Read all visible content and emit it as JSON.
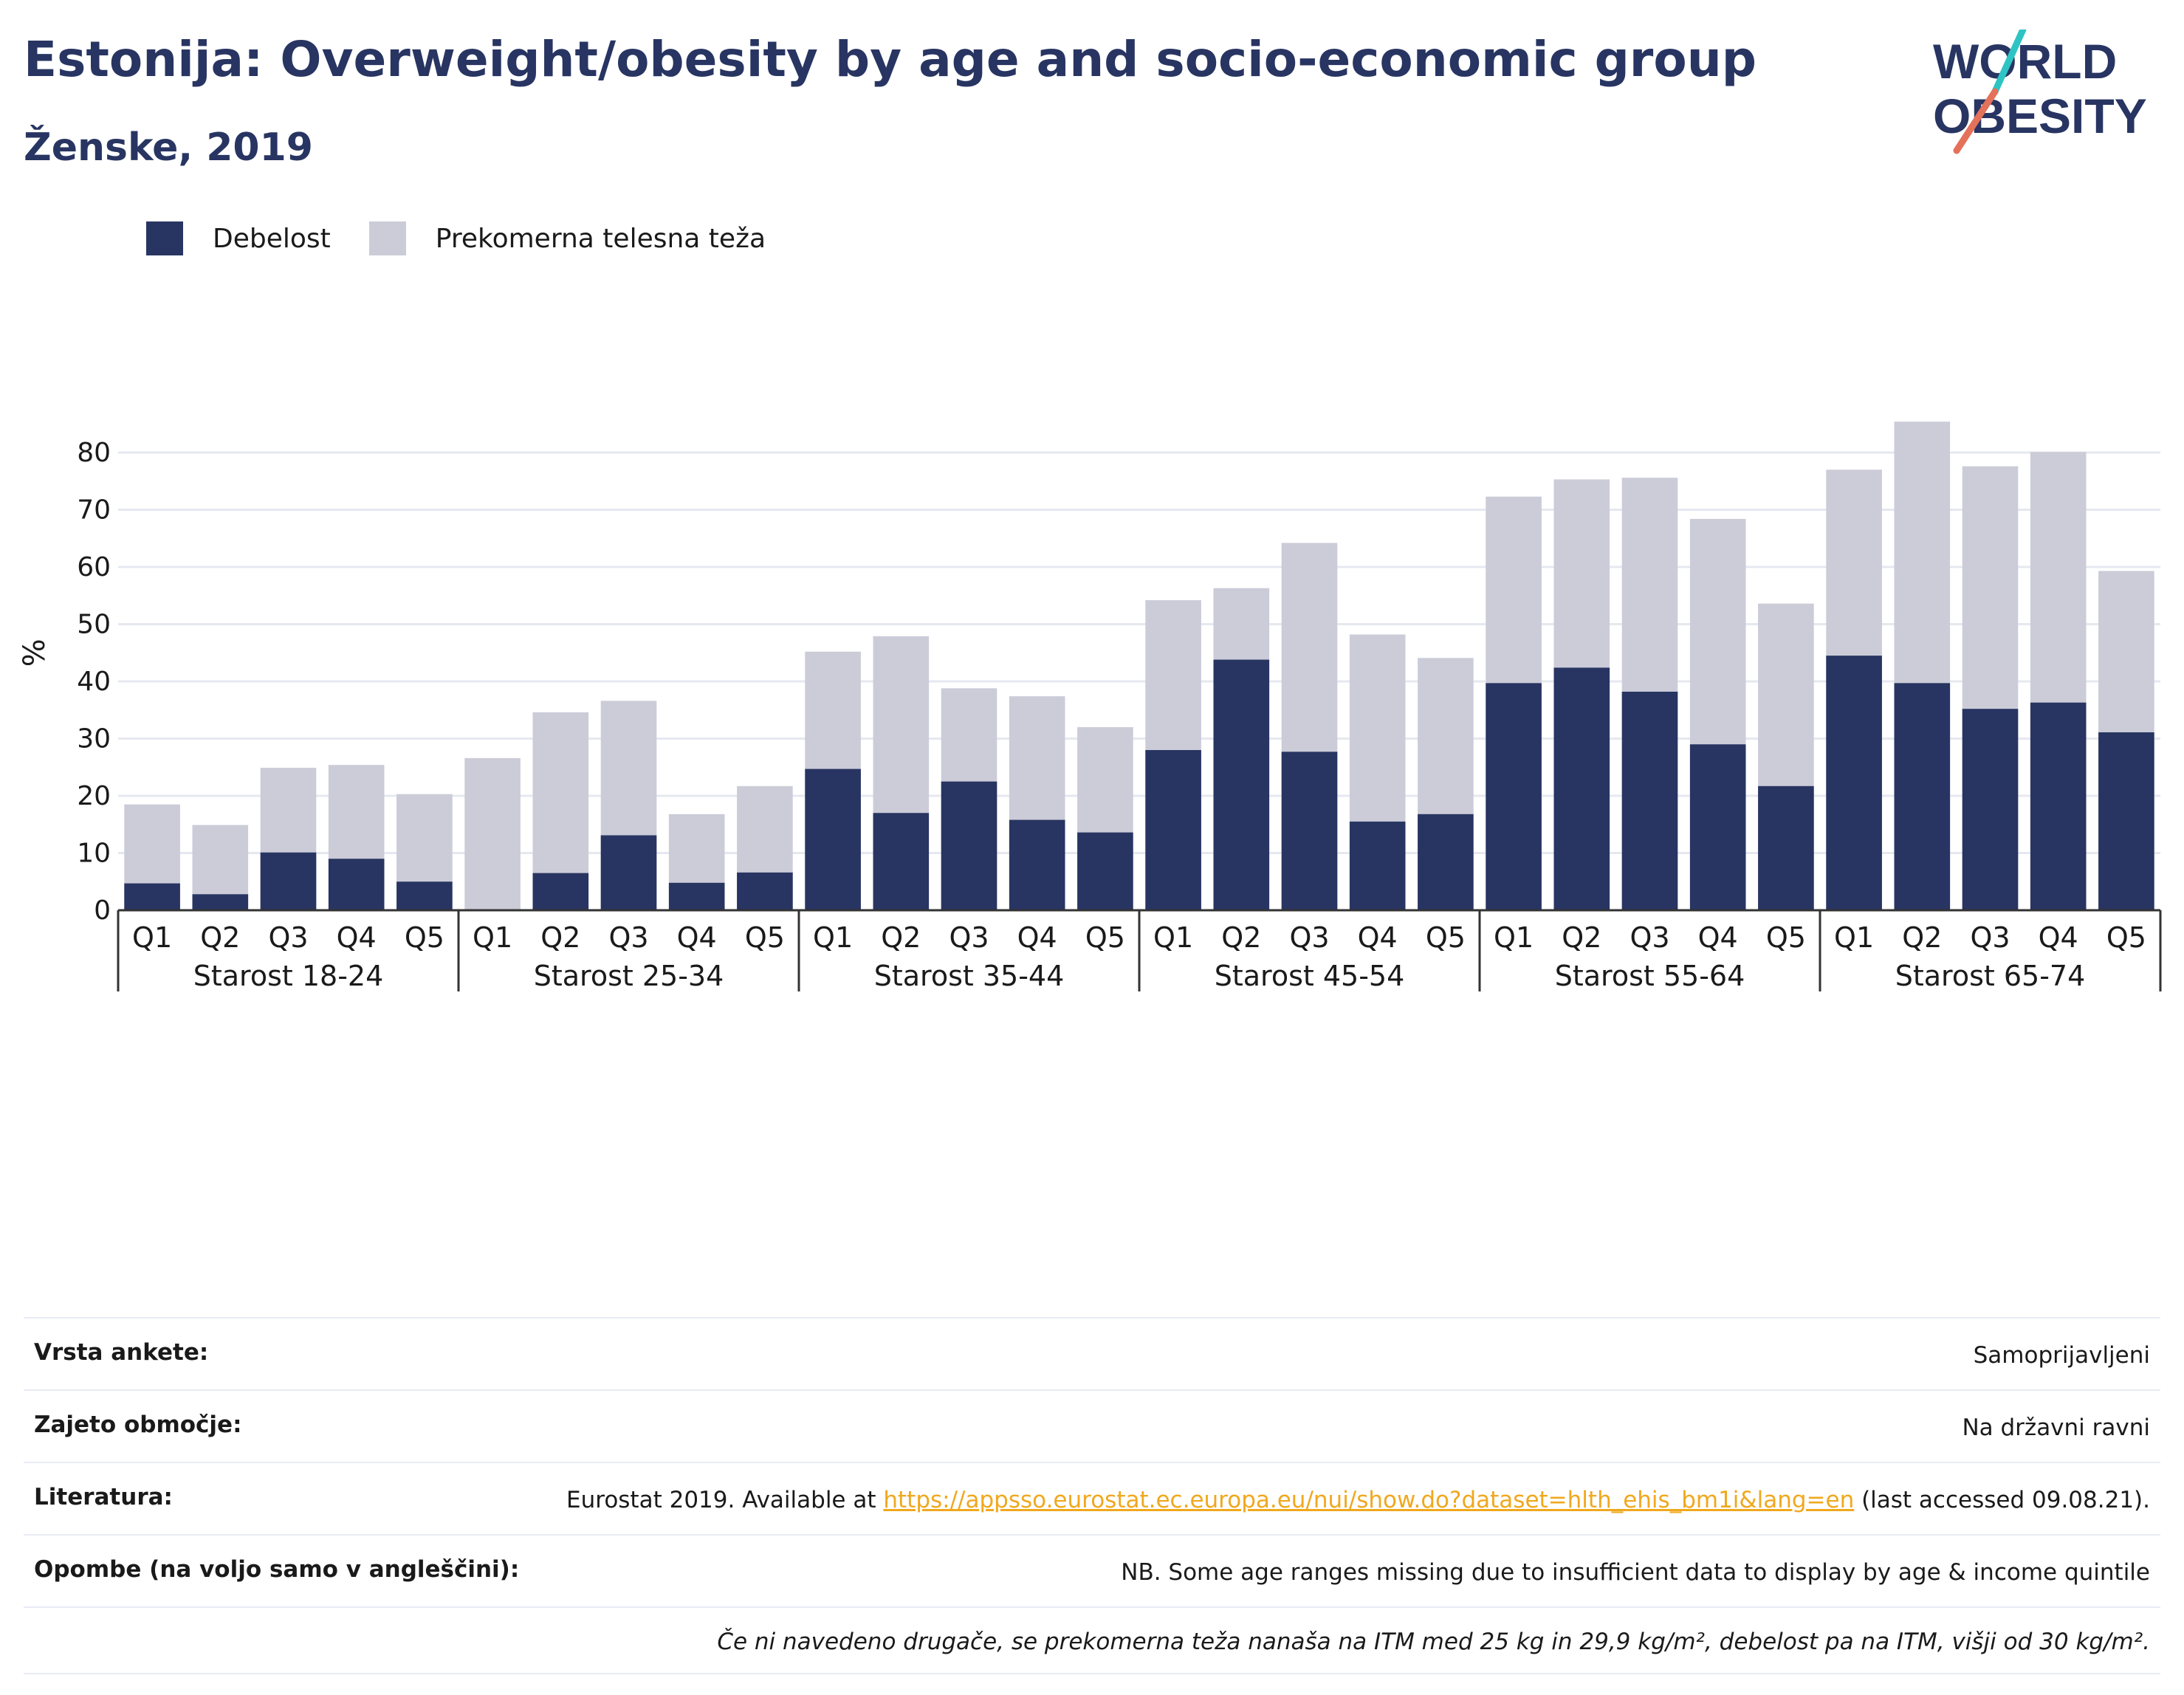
{
  "header": {
    "title": "Estonija: Overweight/obesity by age and socio-economic group",
    "subtitle": "Ženske, 2019"
  },
  "logo": {
    "line1": "WORLD",
    "line2": "OBESITY"
  },
  "colors": {
    "obesity": "#283562",
    "overweight": "#cbccd8",
    "grid": "#e6e8f0",
    "axis": "#333333",
    "accent_teal": "#2ec4c4",
    "accent_coral": "#e4715a"
  },
  "chart_data": {
    "type": "bar",
    "stacked": true,
    "ylabel": "%",
    "ylim": [
      0,
      90
    ],
    "yticks": [
      0,
      10,
      20,
      30,
      40,
      50,
      60,
      70,
      80
    ],
    "grid": true,
    "legend_position": "top-left",
    "series": [
      {
        "name": "Debelost",
        "color": "#283562"
      },
      {
        "name": "Prekomerna telesna teža",
        "color": "#cbccd8"
      }
    ],
    "groups": [
      {
        "label": "Starost 18-24",
        "bars": [
          {
            "q": "Q1",
            "obesity": 4.7,
            "total": 18.5
          },
          {
            "q": "Q2",
            "obesity": 2.8,
            "total": 14.9
          },
          {
            "q": "Q3",
            "obesity": 10.1,
            "total": 24.9
          },
          {
            "q": "Q4",
            "obesity": 9.0,
            "total": 25.4
          },
          {
            "q": "Q5",
            "obesity": 5.0,
            "total": 20.3
          }
        ]
      },
      {
        "label": "Starost 25-34",
        "bars": [
          {
            "q": "Q1",
            "obesity": 0,
            "total": 26.6
          },
          {
            "q": "Q2",
            "obesity": 6.5,
            "total": 34.6
          },
          {
            "q": "Q3",
            "obesity": 13.1,
            "total": 36.6
          },
          {
            "q": "Q4",
            "obesity": 4.8,
            "total": 16.8
          },
          {
            "q": "Q5",
            "obesity": 6.6,
            "total": 21.7
          }
        ]
      },
      {
        "label": "Starost 35-44",
        "bars": [
          {
            "q": "Q1",
            "obesity": 24.7,
            "total": 45.2
          },
          {
            "q": "Q2",
            "obesity": 17.0,
            "total": 47.9
          },
          {
            "q": "Q3",
            "obesity": 22.5,
            "total": 38.8
          },
          {
            "q": "Q4",
            "obesity": 15.8,
            "total": 37.4
          },
          {
            "q": "Q5",
            "obesity": 13.6,
            "total": 32.0
          }
        ]
      },
      {
        "label": "Starost 45-54",
        "bars": [
          {
            "q": "Q1",
            "obesity": 28.0,
            "total": 54.2
          },
          {
            "q": "Q2",
            "obesity": 43.8,
            "total": 56.3
          },
          {
            "q": "Q3",
            "obesity": 27.7,
            "total": 64.2
          },
          {
            "q": "Q4",
            "obesity": 15.5,
            "total": 48.2
          },
          {
            "q": "Q5",
            "obesity": 16.8,
            "total": 44.1
          }
        ]
      },
      {
        "label": "Starost 55-64",
        "bars": [
          {
            "q": "Q1",
            "obesity": 39.7,
            "total": 72.3
          },
          {
            "q": "Q2",
            "obesity": 42.4,
            "total": 75.3
          },
          {
            "q": "Q3",
            "obesity": 38.2,
            "total": 75.6
          },
          {
            "q": "Q4",
            "obesity": 29.0,
            "total": 68.4
          },
          {
            "q": "Q5",
            "obesity": 21.7,
            "total": 53.6
          }
        ]
      },
      {
        "label": "Starost 65-74",
        "bars": [
          {
            "q": "Q1",
            "obesity": 44.5,
            "total": 77.0
          },
          {
            "q": "Q2",
            "obesity": 39.7,
            "total": 85.4
          },
          {
            "q": "Q3",
            "obesity": 35.2,
            "total": 77.6
          },
          {
            "q": "Q4",
            "obesity": 36.3,
            "total": 80.1
          },
          {
            "q": "Q5",
            "obesity": 31.1,
            "total": 59.3
          }
        ]
      }
    ]
  },
  "meta": {
    "survey_type_label": "Vrsta ankete:",
    "survey_type_value": "Samoprijavljeni",
    "coverage_label": "Zajeto območje:",
    "coverage_value": "Na državni ravni",
    "references_label": "Literatura:",
    "references_prefix": "Eurostat 2019. Available at ",
    "references_link": "https://appsso.eurostat.ec.europa.eu/nui/show.do?dataset=hlth_ehis_bm1i&lang=en",
    "references_suffix": " (last accessed 09.08.21).",
    "notes_label": "Opombe (na voljo samo v angleščini):",
    "notes_value": "NB. Some age ranges missing due to insufficient data to display by age & income quintile",
    "definition_note": "Če ni navedeno drugače, se prekomerna teža nanaša na ITM med 25 kg in 29,9 kg/m², debelost pa na ITM, višji od 30 kg/m²."
  }
}
